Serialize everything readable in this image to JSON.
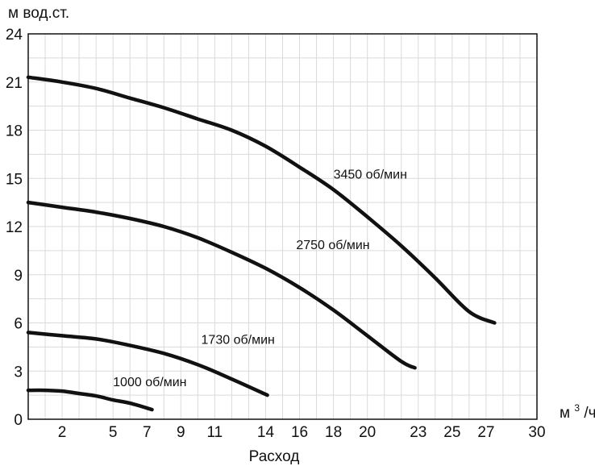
{
  "chart_data": {
    "type": "line",
    "ylabel": "м вод.ст.",
    "xlabel": "Расход",
    "x_unit_base": "м",
    "x_unit_exp": "3",
    "x_unit_tail": "/ч",
    "xlim": [
      0,
      30
    ],
    "ylim": [
      0,
      24
    ],
    "xticks": [
      "2",
      "5",
      "7",
      "9",
      "11",
      "14",
      "16",
      "18",
      "20",
      "23",
      "25",
      "27",
      "30"
    ],
    "yticks": [
      "0",
      "3",
      "6",
      "9",
      "12",
      "15",
      "18",
      "21",
      "24"
    ],
    "grid": true,
    "series": [
      {
        "name": "3450 об/мин",
        "x": [
          0,
          2,
          4,
          6,
          8,
          10,
          12,
          14,
          16,
          18,
          20,
          22,
          24,
          26,
          27.5
        ],
        "y": [
          21.3,
          21.0,
          20.6,
          20.0,
          19.4,
          18.7,
          18.0,
          17.0,
          15.7,
          14.3,
          12.6,
          10.8,
          8.8,
          6.7,
          6.0
        ]
      },
      {
        "name": "2750 об/мин",
        "x": [
          0,
          2,
          4,
          6,
          8,
          10,
          12,
          14,
          16,
          18,
          20,
          22,
          22.8
        ],
        "y": [
          13.5,
          13.2,
          12.9,
          12.5,
          12.0,
          11.3,
          10.4,
          9.4,
          8.2,
          6.8,
          5.2,
          3.6,
          3.2
        ]
      },
      {
        "name": "1730 об/мин",
        "x": [
          0,
          2,
          4,
          6,
          8,
          10,
          12,
          14.1
        ],
        "y": [
          5.4,
          5.2,
          5.0,
          4.6,
          4.1,
          3.4,
          2.5,
          1.5
        ]
      },
      {
        "name": "1000 об/мин",
        "x": [
          0,
          1,
          2,
          3,
          4,
          5,
          6,
          7.3
        ],
        "y": [
          1.8,
          1.8,
          1.75,
          1.6,
          1.45,
          1.2,
          1.0,
          0.6
        ]
      }
    ]
  }
}
